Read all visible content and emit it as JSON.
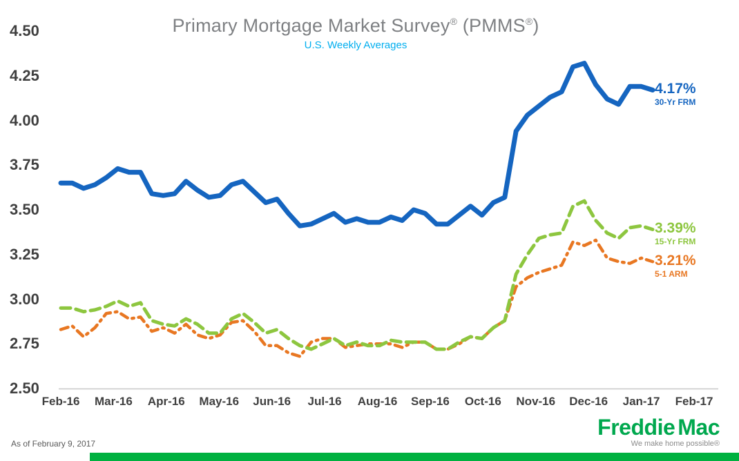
{
  "title": {
    "main": "Primary Mortgage Market Survey",
    "reg1": "®",
    "paren": " (PMMS",
    "reg2": "®",
    "close": ")",
    "subtitle": "U.S. Weekly Averages"
  },
  "footer": {
    "as_of": "As of February 9, 2017",
    "logo_word1": "Freddie",
    "logo_word2": "Mac",
    "tagline": "We make home possible®"
  },
  "colors": {
    "title_gray": "#7E8083",
    "subtitle_blue": "#00AEEF",
    "axis_text": "#3F3F3F",
    "footnote_gray": "#595959",
    "brand_green": "#00A84E",
    "bar_green": "#00B140",
    "tagline_gray": "#8A8A8A",
    "baseline_gray": "#C8C8C8"
  },
  "chart_data": {
    "type": "line",
    "title": "Primary Mortgage Market Survey® (PMMS®)",
    "subtitle": "U.S. Weekly Averages",
    "xlabel": "",
    "ylabel": "",
    "ylim": [
      2.5,
      4.5
    ],
    "grid": false,
    "legend_position": "right-end-labels",
    "y_ticks": [
      "4.50",
      "4.25",
      "4.00",
      "3.75",
      "3.50",
      "3.25",
      "3.00",
      "2.75",
      "2.50"
    ],
    "x_tick_labels": [
      "Feb-16",
      "Mar-16",
      "Apr-16",
      "May-16",
      "Jun-16",
      "Jul-16",
      "Aug-16",
      "Sep-16",
      "Oct-16",
      "Nov-16",
      "Dec-16",
      "Jan-17",
      "Feb-17"
    ],
    "x": [
      "2016-02-11",
      "2016-02-18",
      "2016-02-25",
      "2016-03-03",
      "2016-03-10",
      "2016-03-17",
      "2016-03-24",
      "2016-03-31",
      "2016-04-07",
      "2016-04-14",
      "2016-04-21",
      "2016-04-28",
      "2016-05-05",
      "2016-05-12",
      "2016-05-19",
      "2016-05-26",
      "2016-06-02",
      "2016-06-09",
      "2016-06-16",
      "2016-06-23",
      "2016-06-30",
      "2016-07-07",
      "2016-07-14",
      "2016-07-21",
      "2016-07-28",
      "2016-08-04",
      "2016-08-11",
      "2016-08-18",
      "2016-08-25",
      "2016-09-01",
      "2016-09-08",
      "2016-09-15",
      "2016-09-22",
      "2016-09-29",
      "2016-10-06",
      "2016-10-13",
      "2016-10-20",
      "2016-10-27",
      "2016-11-03",
      "2016-11-10",
      "2016-11-17",
      "2016-11-23",
      "2016-12-01",
      "2016-12-08",
      "2016-12-15",
      "2016-12-22",
      "2016-12-29",
      "2017-01-05",
      "2017-01-12",
      "2017-01-19",
      "2017-01-26",
      "2017-02-02",
      "2017-02-09"
    ],
    "series": [
      {
        "name": "30-Yr FRM",
        "end_label": "4.17%",
        "color": "#1565C0",
        "style": "solid",
        "values": [
          3.65,
          3.65,
          3.62,
          3.64,
          3.68,
          3.73,
          3.71,
          3.71,
          3.59,
          3.58,
          3.59,
          3.66,
          3.61,
          3.57,
          3.58,
          3.64,
          3.66,
          3.6,
          3.54,
          3.56,
          3.48,
          3.41,
          3.42,
          3.45,
          3.48,
          3.43,
          3.45,
          3.43,
          3.43,
          3.46,
          3.44,
          3.5,
          3.48,
          3.42,
          3.42,
          3.47,
          3.52,
          3.47,
          3.54,
          3.57,
          3.94,
          4.03,
          4.08,
          4.13,
          4.16,
          4.3,
          4.32,
          4.2,
          4.12,
          4.09,
          4.19,
          4.19,
          4.17
        ]
      },
      {
        "name": "15-Yr FRM",
        "end_label": "3.39%",
        "color": "#8DC63F",
        "style": "dashed",
        "values": [
          2.95,
          2.95,
          2.93,
          2.94,
          2.96,
          2.99,
          2.96,
          2.98,
          2.88,
          2.86,
          2.85,
          2.89,
          2.86,
          2.81,
          2.81,
          2.89,
          2.92,
          2.87,
          2.81,
          2.83,
          2.78,
          2.74,
          2.72,
          2.75,
          2.78,
          2.74,
          2.76,
          2.74,
          2.74,
          2.77,
          2.76,
          2.76,
          2.76,
          2.72,
          2.72,
          2.76,
          2.79,
          2.78,
          2.84,
          2.88,
          3.14,
          3.25,
          3.34,
          3.36,
          3.37,
          3.52,
          3.55,
          3.44,
          3.37,
          3.34,
          3.4,
          3.41,
          3.39
        ]
      },
      {
        "name": "5-1 ARM",
        "end_label": "3.21%",
        "color": "#E87722",
        "style": "dash-dot",
        "values": [
          2.83,
          2.85,
          2.79,
          2.84,
          2.92,
          2.93,
          2.89,
          2.9,
          2.82,
          2.84,
          2.81,
          2.86,
          2.8,
          2.78,
          2.8,
          2.87,
          2.88,
          2.82,
          2.74,
          2.74,
          2.7,
          2.68,
          2.76,
          2.78,
          2.78,
          2.73,
          2.74,
          2.75,
          2.75,
          2.75,
          2.73,
          2.76,
          2.76,
          2.72,
          2.72,
          2.75,
          2.79,
          2.78,
          2.84,
          2.88,
          3.07,
          3.12,
          3.15,
          3.17,
          3.19,
          3.32,
          3.3,
          3.33,
          3.23,
          3.21,
          3.2,
          3.23,
          3.21
        ]
      }
    ]
  }
}
